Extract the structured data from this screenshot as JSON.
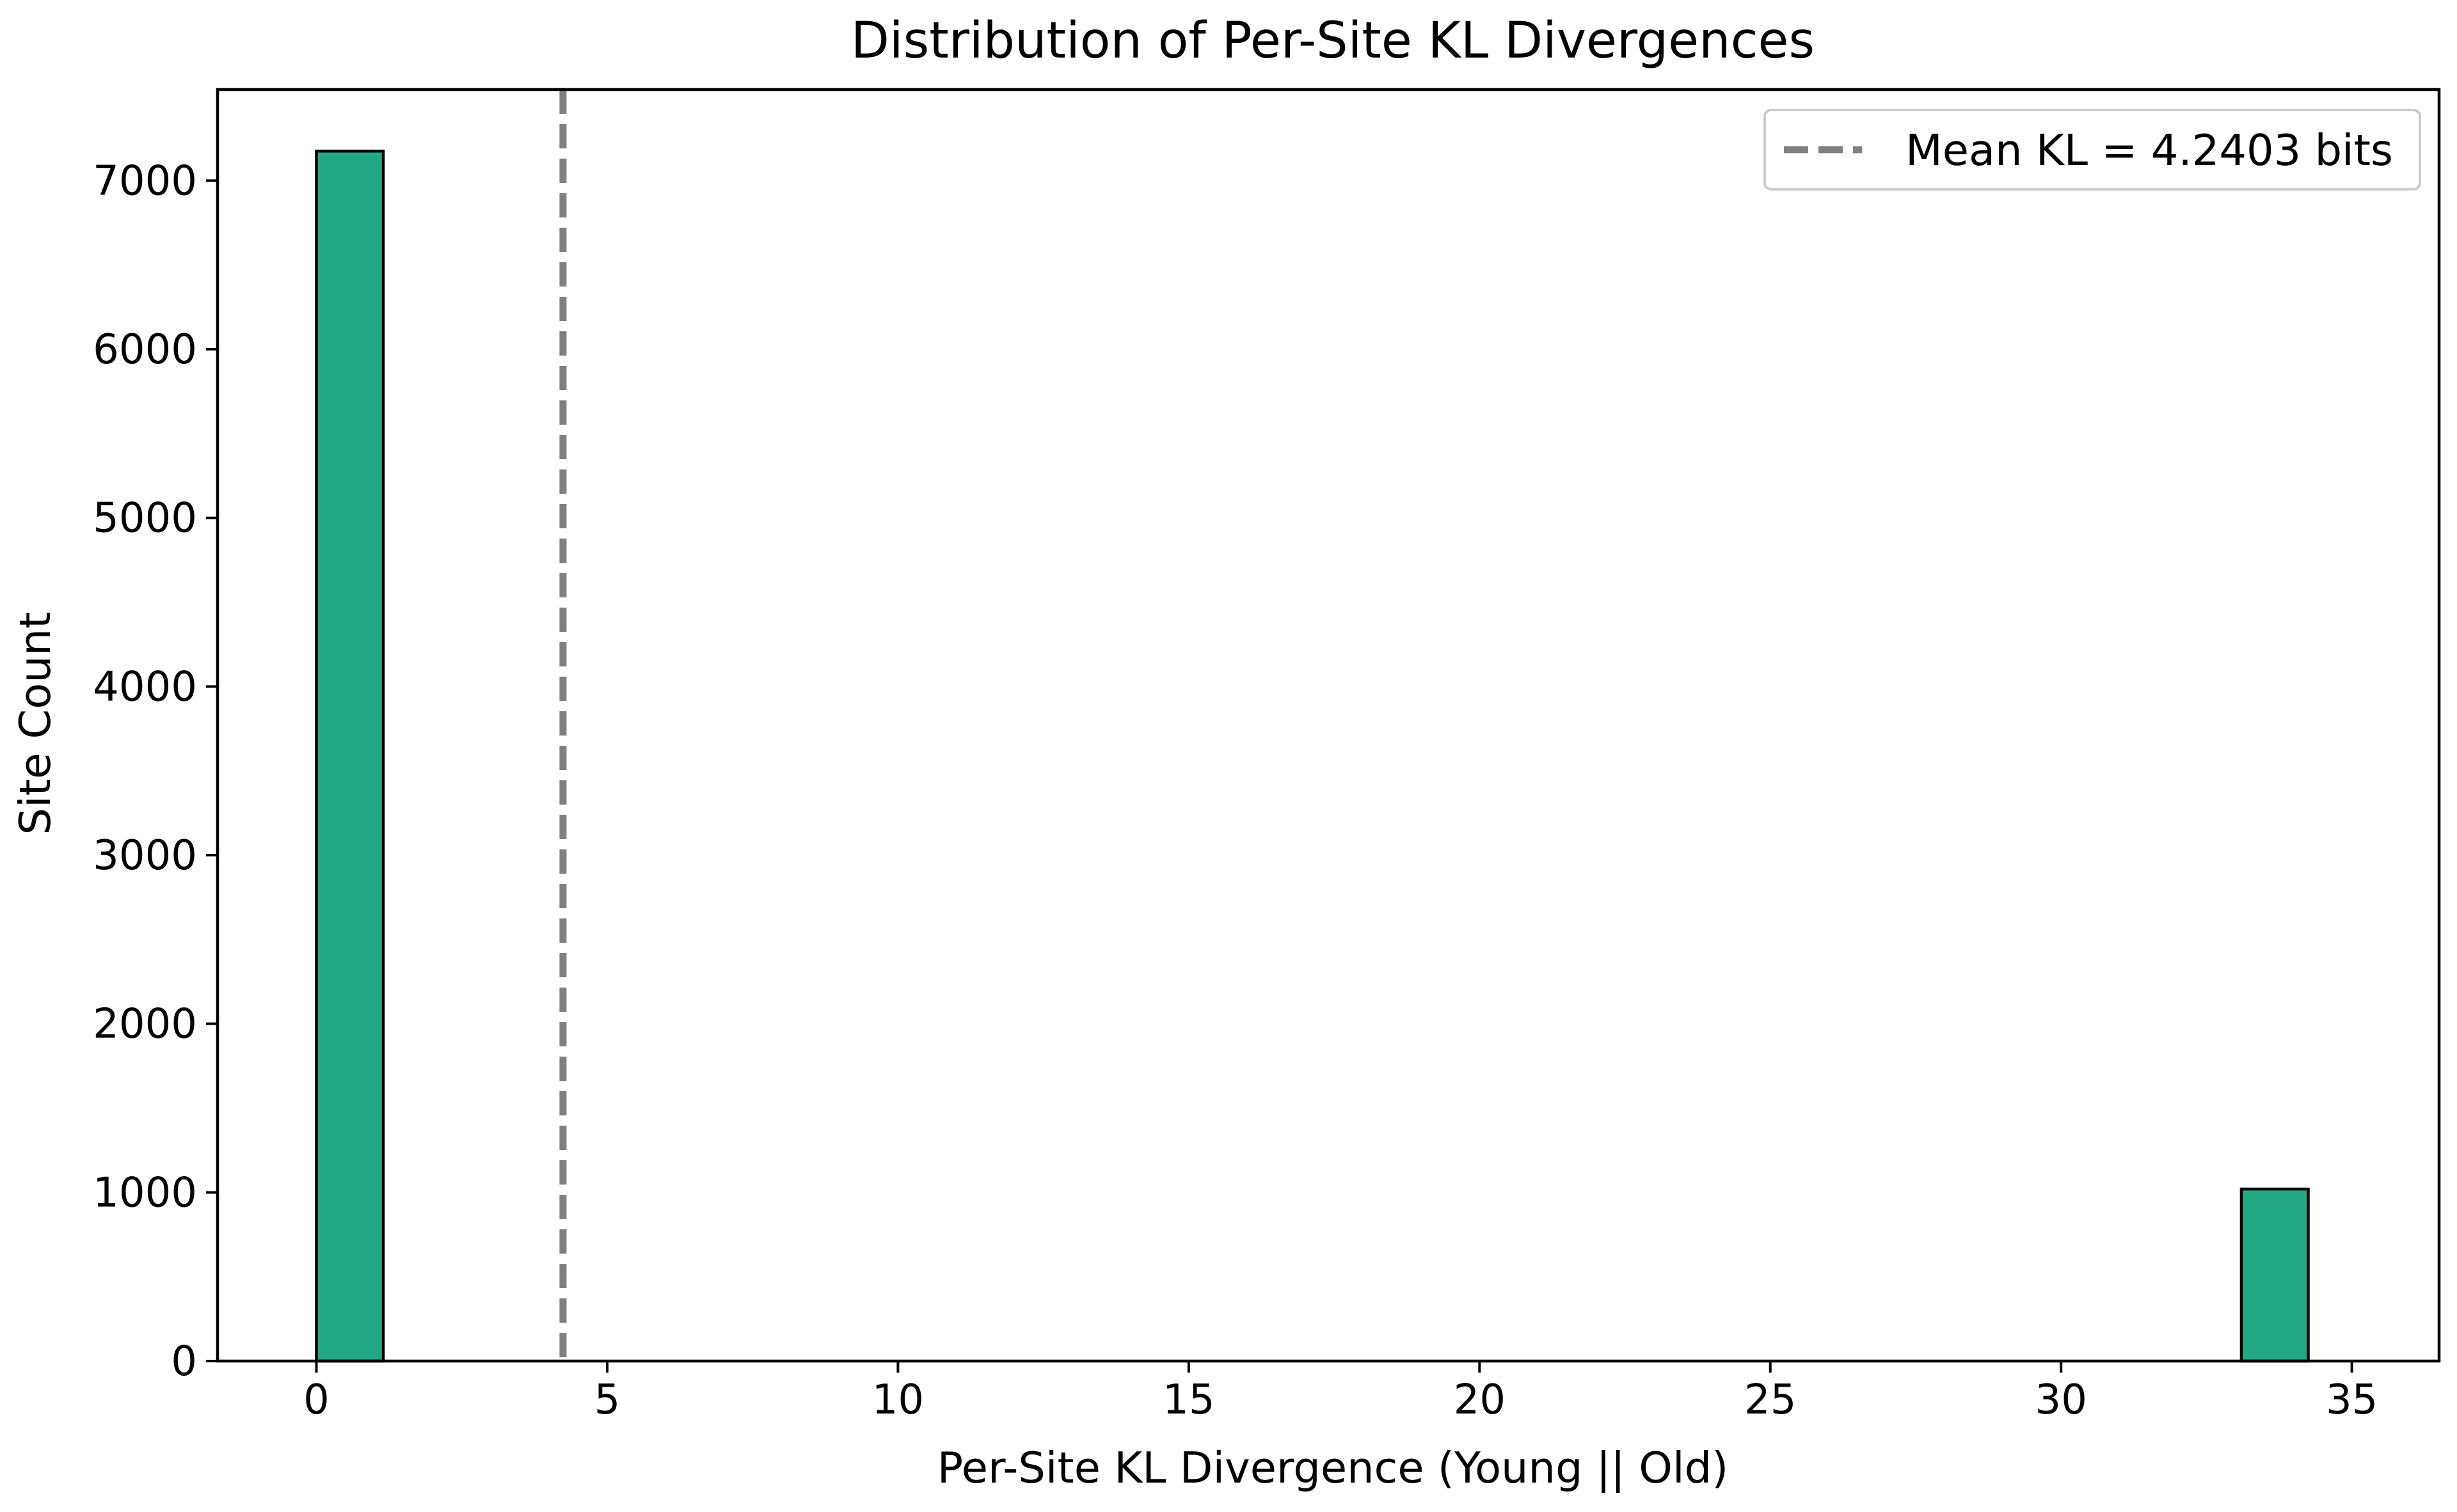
{
  "chart_data": {
    "type": "bar",
    "title": "Distribution of Per-Site KL Divergences",
    "xlabel": "Per-Site KL Divergence (Young || Old)",
    "ylabel": "Site Count",
    "xlim": [
      -1.7,
      36.5
    ],
    "ylim": [
      0,
      7540
    ],
    "xticks": [
      0,
      5,
      10,
      15,
      20,
      25,
      30,
      35
    ],
    "yticks": [
      0,
      1000,
      2000,
      3000,
      4000,
      5000,
      6000,
      7000
    ],
    "bin_width": 1.15,
    "bins": [
      {
        "x0": 0.0,
        "count": 7175
      },
      {
        "x0": 1.15,
        "count": 0
      },
      {
        "x0": 2.3,
        "count": 0
      },
      {
        "x0": 3.45,
        "count": 0
      },
      {
        "x0": 4.6,
        "count": 0
      },
      {
        "x0": 5.75,
        "count": 0
      },
      {
        "x0": 6.9,
        "count": 0
      },
      {
        "x0": 8.05,
        "count": 0
      },
      {
        "x0": 9.2,
        "count": 0
      },
      {
        "x0": 10.35,
        "count": 0
      },
      {
        "x0": 11.5,
        "count": 0
      },
      {
        "x0": 12.65,
        "count": 0
      },
      {
        "x0": 13.8,
        "count": 0
      },
      {
        "x0": 14.95,
        "count": 0
      },
      {
        "x0": 16.1,
        "count": 0
      },
      {
        "x0": 17.25,
        "count": 0
      },
      {
        "x0": 18.4,
        "count": 0
      },
      {
        "x0": 19.55,
        "count": 0
      },
      {
        "x0": 20.7,
        "count": 0
      },
      {
        "x0": 21.85,
        "count": 0
      },
      {
        "x0": 23.0,
        "count": 0
      },
      {
        "x0": 24.15,
        "count": 0
      },
      {
        "x0": 25.3,
        "count": 0
      },
      {
        "x0": 26.45,
        "count": 0
      },
      {
        "x0": 27.6,
        "count": 0
      },
      {
        "x0": 28.75,
        "count": 0
      },
      {
        "x0": 29.9,
        "count": 0
      },
      {
        "x0": 31.05,
        "count": 0
      },
      {
        "x0": 32.2,
        "count": 0
      },
      {
        "x0": 33.1,
        "count": 1020
      }
    ],
    "bar_color": "#23a884",
    "bar_edge_color": "#000000",
    "mean_line": {
      "x": 4.2403,
      "label": "Mean KL = 4.2403 bits",
      "color": "#808080",
      "style": "dashed"
    },
    "legend": {
      "position": "top-right"
    },
    "grid": false
  }
}
